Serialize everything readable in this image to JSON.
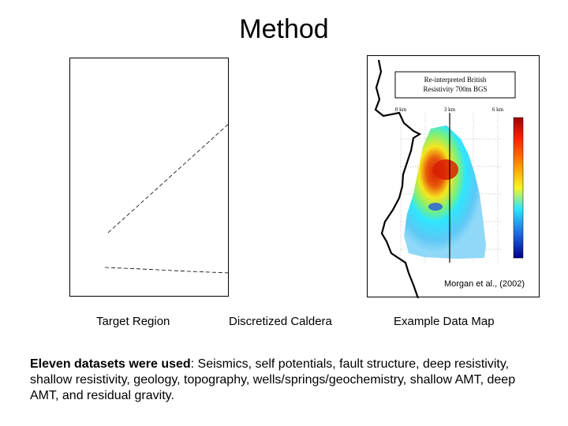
{
  "slide": {
    "title": "Method"
  },
  "map_panel": {
    "box_title_line1": "Re-interpreted British",
    "box_title_line2": "Resistivity 700m BGS",
    "scale_labels": [
      "0 km",
      "3 km",
      "6 km"
    ],
    "citation": "Morgan et al., (2002)"
  },
  "captions": {
    "target_region": "Target Region",
    "discretized_caldera": "Discretized Caldera",
    "example_data_map": "Example Data Map"
  },
  "body": {
    "lead": "Eleven datasets were used",
    "colon": ":",
    "text": " Seismics, self potentials, fault structure, deep resistivity, shallow resistivity, geology, topography, wells/springs/geochemistry, shallow AMT, deep AMT, and residual gravity."
  },
  "colors": {
    "heat_red": "#d81e05",
    "heat_yellow": "#f5e61e",
    "heat_cyan": "#2ee6ff",
    "heat_blue": "#1e50e6",
    "colorbar_top": "#a00000",
    "colorbar_bottom": "#00008b"
  }
}
